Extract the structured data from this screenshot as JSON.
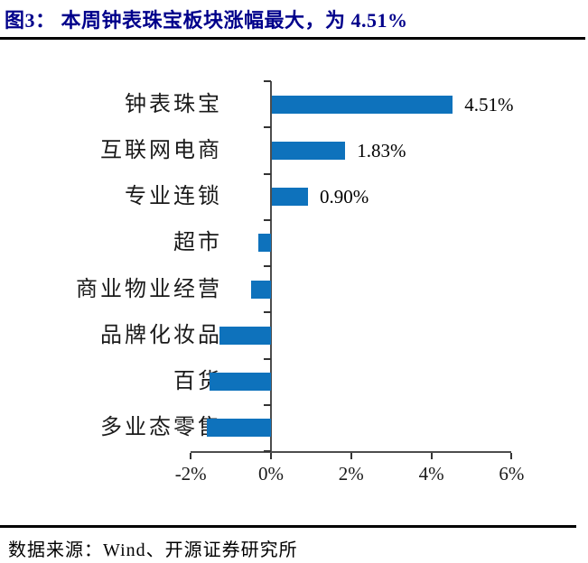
{
  "header": {
    "title": "图3：  本周钟表珠宝板块涨幅最大，为 4.51%"
  },
  "chart_data": {
    "type": "bar",
    "orientation": "horizontal",
    "title": "图3：本周钟表珠宝板块涨幅最大，为 4.51%",
    "categories": [
      "钟表珠宝",
      "互联网电商",
      "专业连锁",
      "超市",
      "商业物业经营",
      "品牌化妆品",
      "百货",
      "多业态零售"
    ],
    "values": [
      4.51,
      1.83,
      0.9,
      -0.32,
      -0.5,
      -1.29,
      -1.53,
      -1.61
    ],
    "data_labels": [
      "4.51%",
      "1.83%",
      "0.90%",
      "",
      "",
      "",
      "",
      ""
    ],
    "x_ticks": [
      -2,
      0,
      2,
      4,
      6
    ],
    "x_tick_labels": [
      "-2%",
      "0%",
      "2%",
      "4%",
      "6%"
    ],
    "xlim": [
      -2,
      6
    ],
    "xlabel": "",
    "ylabel": "",
    "grid": false,
    "legend": false,
    "bar_color": "#0E72BC",
    "title_color": "#00008B",
    "axis_color": "#4d4d4d"
  },
  "footer": {
    "source": "数据来源：Wind、开源证券研究所"
  }
}
